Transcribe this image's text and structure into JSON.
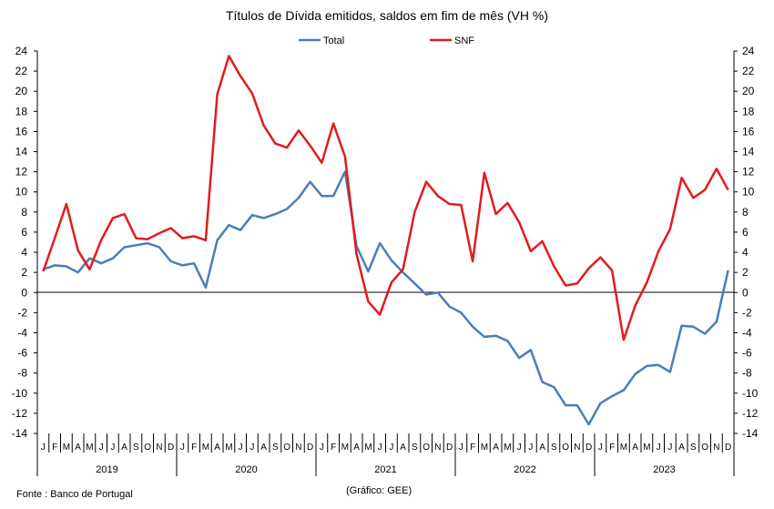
{
  "chart_data": {
    "type": "line",
    "title": "Títulos de Dívida emitidos, saldos em fim de mês  (VH %)",
    "y_ticks": [
      "24",
      "22",
      "20",
      "18",
      "16",
      "14",
      "12",
      "10",
      "8",
      "6",
      "4",
      "2",
      "0",
      "-2",
      "-4",
      "-6",
      "-8",
      "-10",
      "-12",
      "-14"
    ],
    "ylim": [
      -14,
      24
    ],
    "y_step": 2,
    "grid": false,
    "legend_position": "top-center",
    "month_letters": [
      "J",
      "F",
      "M",
      "A",
      "M",
      "J",
      "J",
      "A",
      "S",
      "O",
      "N",
      "D"
    ],
    "years": [
      "2019",
      "2020",
      "2021",
      "2022",
      "2023"
    ],
    "series": [
      {
        "name": "Total",
        "color": "#4A7EBB",
        "values": [
          2.3,
          2.7,
          2.6,
          2.0,
          3.4,
          2.9,
          3.4,
          4.5,
          4.7,
          4.9,
          4.5,
          3.1,
          2.7,
          2.9,
          0.5,
          5.2,
          6.7,
          6.2,
          7.7,
          7.4,
          7.8,
          8.3,
          9.4,
          11.0,
          9.6,
          9.6,
          12.0,
          4.6,
          2.1,
          4.9,
          3.2,
          2.0,
          0.9,
          -0.2,
          0.0,
          -1.4,
          -2.0,
          -3.4,
          -4.4,
          -4.3,
          -4.8,
          -6.5,
          -5.7,
          -8.9,
          -9.4,
          -11.2,
          -11.2,
          -13.1,
          -11.0,
          -10.3,
          -9.7,
          -8.1,
          -7.3,
          -7.2,
          -7.9,
          -3.3,
          -3.4,
          -4.1,
          -2.9,
          2.2
        ]
      },
      {
        "name": "SNF",
        "color": "#E31A1C",
        "values": [
          2.1,
          5.4,
          8.8,
          4.2,
          2.3,
          5.2,
          7.4,
          7.8,
          5.4,
          5.3,
          5.9,
          6.4,
          5.4,
          5.6,
          5.2,
          19.7,
          23.5,
          21.5,
          19.8,
          16.6,
          14.8,
          14.4,
          16.1,
          14.6,
          12.9,
          16.8,
          13.5,
          3.8,
          -0.9,
          -2.2,
          1.0,
          2.3,
          8.0,
          11.0,
          9.6,
          8.8,
          8.7,
          3.1,
          11.9,
          7.8,
          8.9,
          7.0,
          4.1,
          5.1,
          2.6,
          0.7,
          0.9,
          2.4,
          3.5,
          2.2,
          -4.7,
          -1.3,
          1.0,
          4.1,
          6.3,
          11.4,
          9.4,
          10.2,
          12.3,
          10.2
        ]
      }
    ]
  },
  "footer": {
    "source": "Fonte : Banco de Portugal",
    "credit": "(Gráfico: GEE)"
  }
}
